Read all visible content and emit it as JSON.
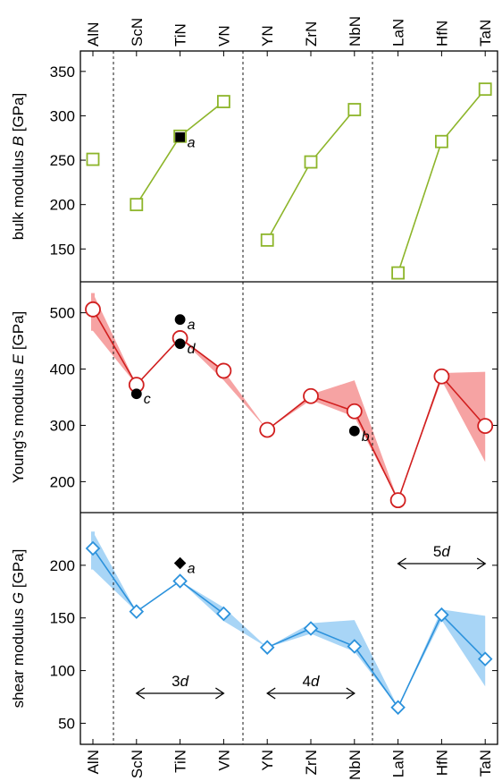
{
  "chart_data": {
    "type": "line",
    "categories": [
      "AlN",
      "ScN",
      "TiN",
      "VN",
      "YN",
      "ZrN",
      "NbN",
      "LaN",
      "HfN",
      "TaN"
    ],
    "groups": [
      {
        "label": "3d",
        "from": "ScN",
        "to": "VN"
      },
      {
        "label": "4d",
        "from": "YN",
        "to": "NbN"
      },
      {
        "label": "5d",
        "from": "LaN",
        "to": "TaN"
      }
    ],
    "panels": [
      {
        "id": "bulk",
        "ylabel_main": "bulk modulus ",
        "ylabel_symbol": "B",
        "ylabel_unit": " [GPa]",
        "ylim": [
          113,
          373
        ],
        "yticks": [
          150,
          200,
          250,
          300,
          350
        ],
        "color": "#8db52a",
        "marker": "square",
        "values": [
          251,
          200,
          277,
          316,
          160,
          248,
          307,
          123,
          271,
          330
        ],
        "band": null,
        "reference_points": [
          {
            "category": "TiN",
            "value": 276,
            "marker": "square",
            "label": "a"
          }
        ]
      },
      {
        "id": "young",
        "ylabel_main": "Young's modulus ",
        "ylabel_symbol": "E",
        "ylabel_unit": " [GPa]",
        "ylim": [
          145,
          555
        ],
        "yticks": [
          200,
          300,
          400,
          500
        ],
        "color": "#d11f1f",
        "band_color": "#f6a3a3",
        "marker": "circle",
        "values": [
          506,
          372,
          455,
          397,
          292,
          352,
          325,
          167,
          387,
          299
        ],
        "band": {
          "upper": [
            535,
            372,
            455,
            397,
            292,
            355,
            380,
            167,
            393,
            395
          ],
          "lower": [
            468,
            372,
            455,
            380,
            292,
            345,
            315,
            167,
            380,
            235
          ]
        },
        "reference_points": [
          {
            "category": "TiN",
            "value": 488,
            "marker": "circle",
            "label": "a"
          },
          {
            "category": "TiN",
            "value": 445,
            "marker": "circle",
            "label": "d"
          },
          {
            "category": "ScN",
            "value": 356,
            "marker": "circle",
            "label": "c"
          },
          {
            "category": "NbN",
            "value": 290,
            "marker": "circle",
            "label": "b"
          }
        ]
      },
      {
        "id": "shear",
        "ylabel_main": "shear modulus ",
        "ylabel_symbol": "G",
        "ylabel_unit": " [GPa]",
        "ylim": [
          30,
          250
        ],
        "yticks": [
          50,
          100,
          150,
          200
        ],
        "color": "#2c92dc",
        "band_color": "#a8d5f6",
        "marker": "diamond",
        "values": [
          216,
          156,
          185,
          154,
          122,
          140,
          123,
          65,
          153,
          111
        ],
        "band": {
          "upper": [
            232,
            156,
            185,
            160,
            122,
            145,
            148,
            65,
            158,
            152
          ],
          "lower": [
            196,
            156,
            185,
            147,
            122,
            135,
            118,
            65,
            148,
            85
          ]
        },
        "reference_points": [
          {
            "category": "TiN",
            "value": 202,
            "marker": "diamond",
            "label": "a"
          }
        ]
      }
    ]
  }
}
